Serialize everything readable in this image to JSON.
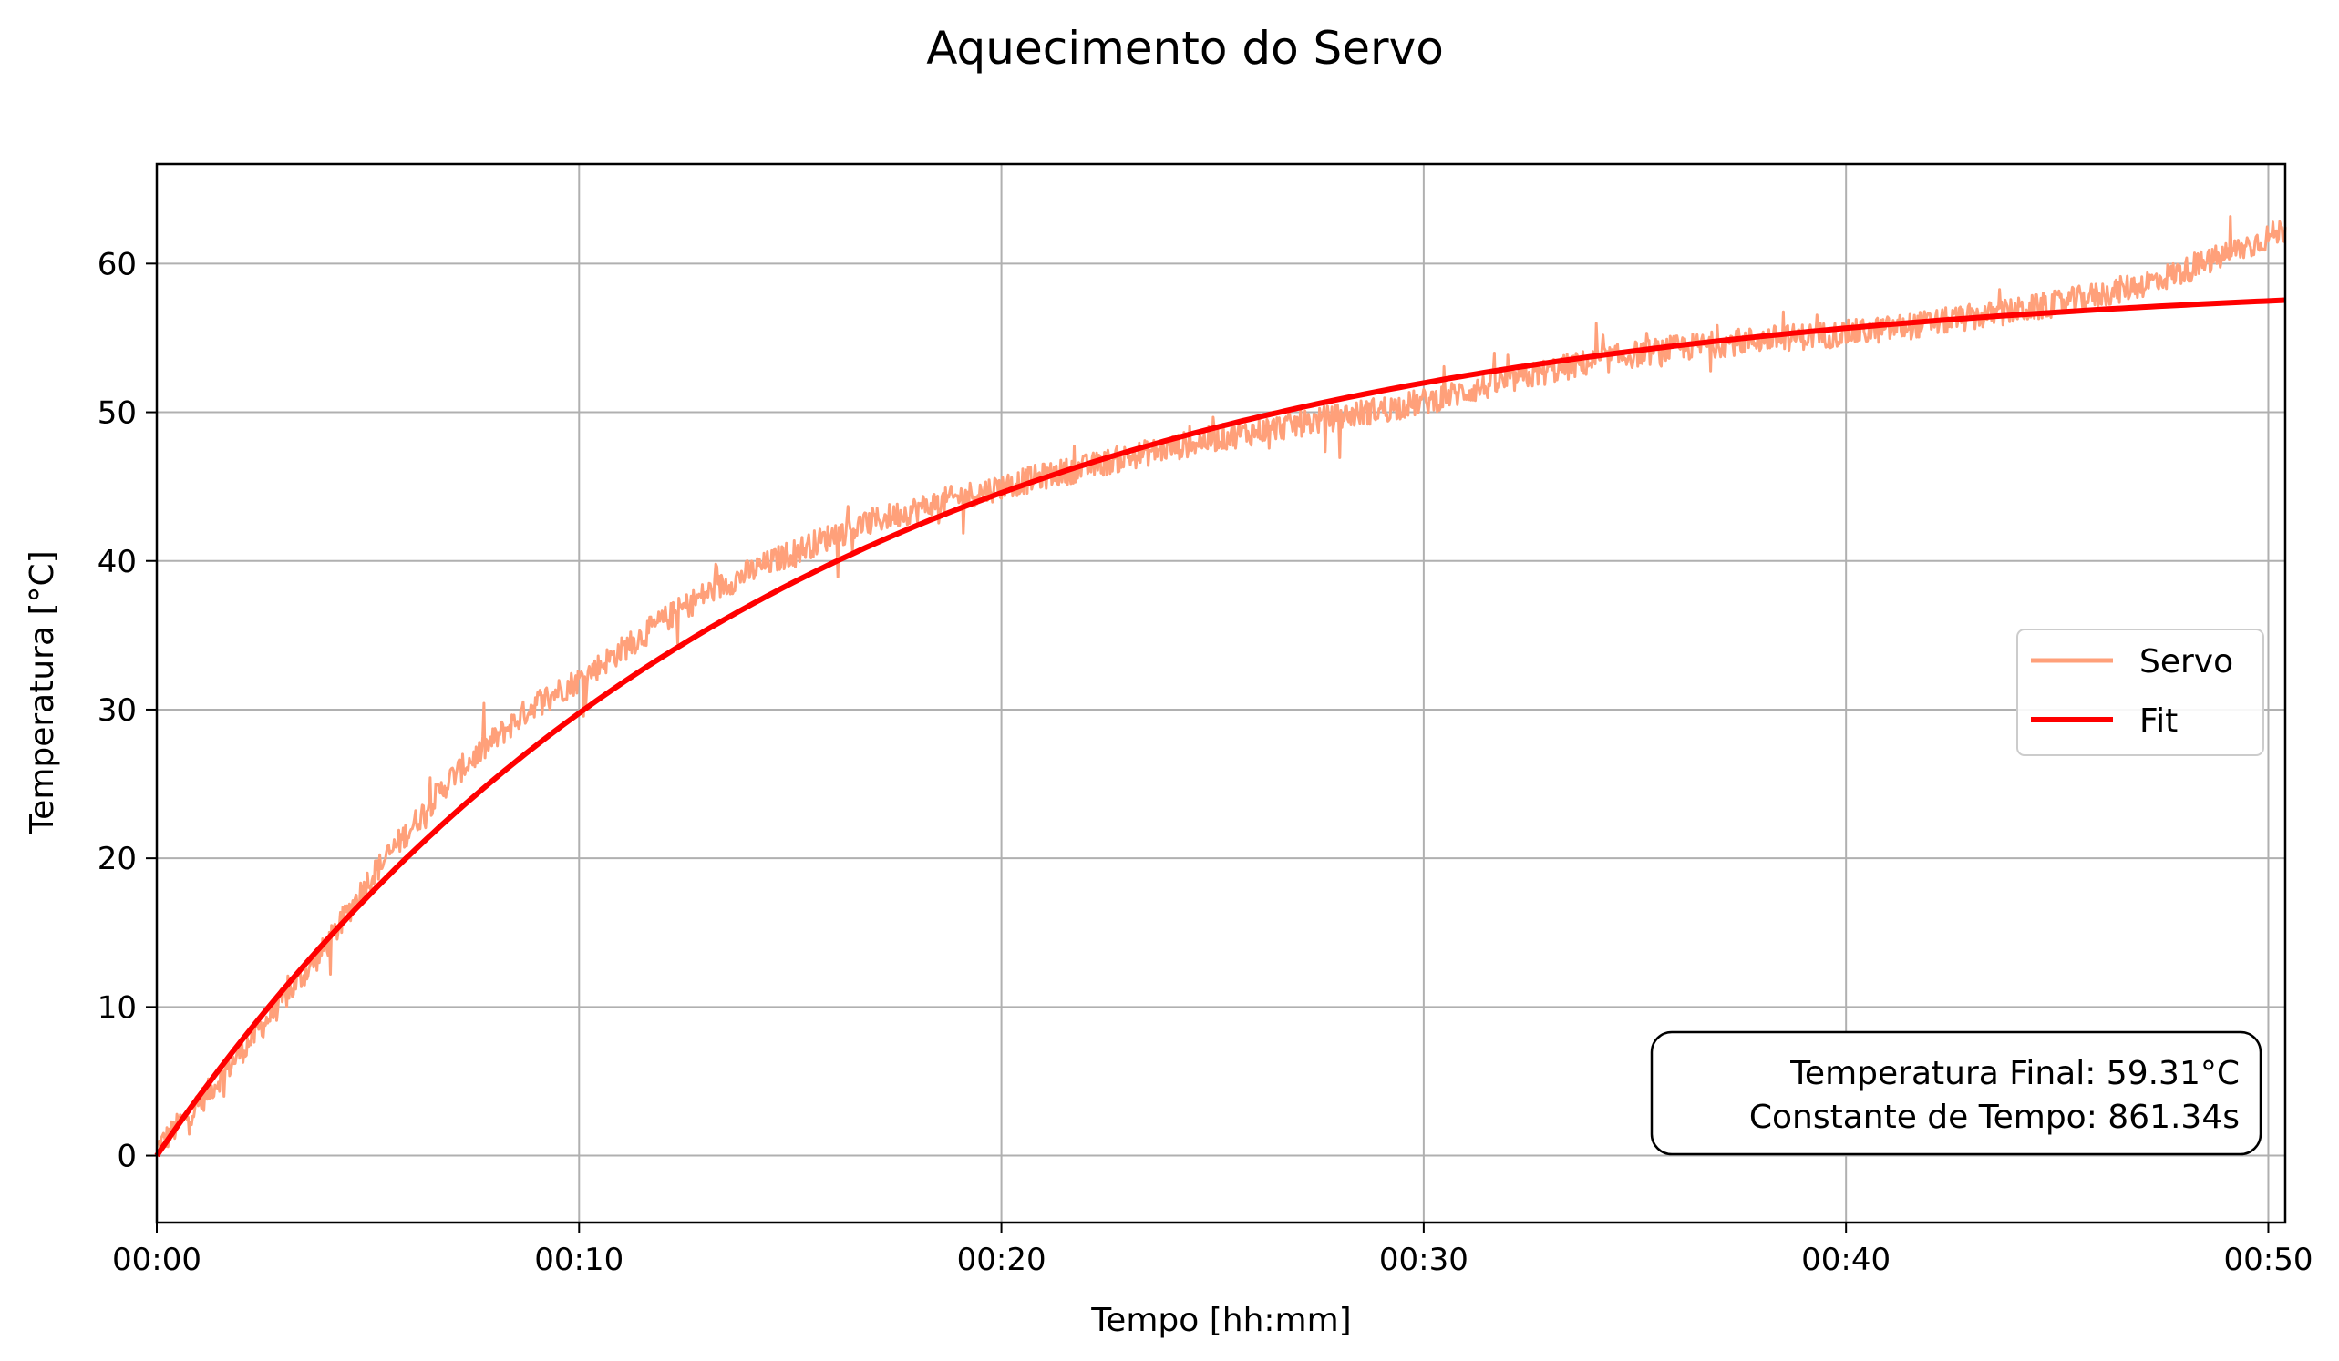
{
  "chart_data": {
    "type": "line",
    "title": "Aquecimento do Servo",
    "xlabel": "Tempo [hh:mm]",
    "ylabel": "Temperatura [°C]",
    "xlim": [
      0,
      50.4
    ],
    "ylim": [
      -4.5,
      66.7
    ],
    "x_ticks": [
      {
        "value": 0,
        "label": "00:00"
      },
      {
        "value": 10,
        "label": "00:10"
      },
      {
        "value": 20,
        "label": "00:20"
      },
      {
        "value": 30,
        "label": "00:30"
      },
      {
        "value": 40,
        "label": "00:40"
      },
      {
        "value": 50,
        "label": "00:50"
      }
    ],
    "y_ticks": [
      {
        "value": 0,
        "label": "0"
      },
      {
        "value": 10,
        "label": "10"
      },
      {
        "value": 20,
        "label": "20"
      },
      {
        "value": 30,
        "label": "30"
      },
      {
        "value": 40,
        "label": "40"
      },
      {
        "value": 50,
        "label": "50"
      },
      {
        "value": 60,
        "label": "60"
      }
    ],
    "grid": true,
    "legend_position": "center-right",
    "series": [
      {
        "name": "Servo",
        "color": "#FFA07A",
        "x": [
          0,
          1,
          2,
          3,
          4,
          5,
          6,
          7,
          8,
          9,
          10,
          11,
          12,
          13,
          14,
          15,
          16,
          17,
          18,
          19,
          20,
          21,
          22,
          23,
          24,
          25,
          26,
          27,
          28,
          29,
          30,
          31,
          32,
          33,
          34,
          35,
          36,
          37,
          38,
          39,
          40,
          41,
          42,
          43,
          44,
          45,
          46,
          47,
          48,
          49,
          50,
          50.4
        ],
        "y": [
          0.5,
          3.5,
          7.0,
          10.5,
          14.0,
          18.5,
          22.0,
          25.5,
          28.0,
          30.5,
          32.0,
          34.0,
          36.0,
          37.8,
          39.2,
          40.5,
          41.7,
          42.7,
          43.5,
          44.3,
          45.0,
          45.7,
          46.3,
          47.0,
          47.6,
          48.2,
          48.7,
          49.2,
          49.7,
          50.2,
          50.7,
          51.4,
          52.1,
          52.8,
          53.4,
          53.9,
          54.3,
          54.6,
          54.9,
          55.1,
          55.3,
          55.6,
          56.0,
          56.4,
          56.8,
          57.3,
          57.9,
          58.6,
          59.5,
          60.6,
          61.8,
          62.3
        ]
      },
      {
        "name": "Fit",
        "color": "#FF0000",
        "final_temperature": 59.31,
        "time_constant_s": 861.34
      }
    ],
    "annotation": {
      "lines": [
        "Temperatura Final: 59.31°C",
        "Constante de Tempo: 861.34s"
      ]
    }
  }
}
